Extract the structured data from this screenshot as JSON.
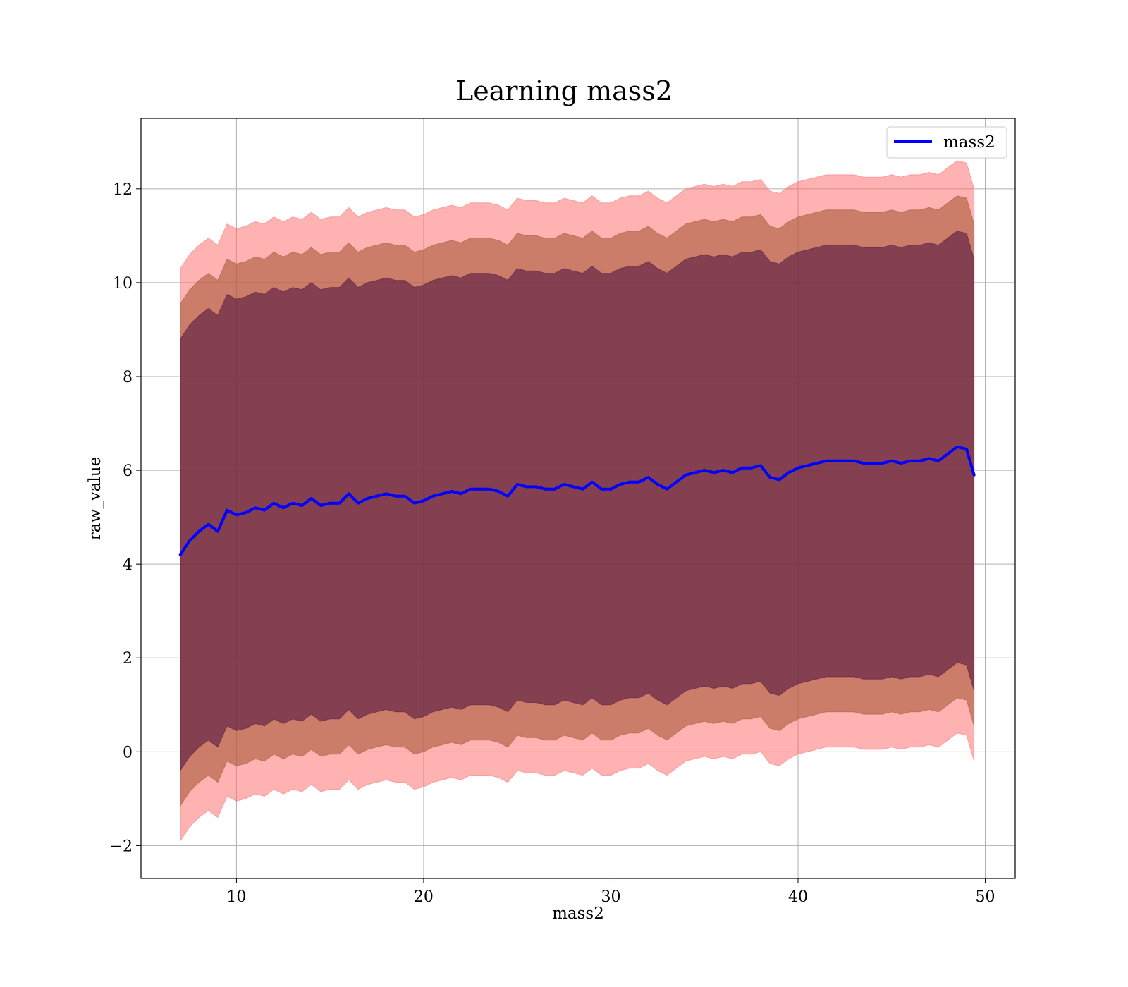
{
  "chart_data": {
    "type": "area",
    "title": "Learning mass2",
    "xlabel": "mass2",
    "ylabel": "raw_value",
    "xlim": [
      4.9,
      51.6
    ],
    "ylim": [
      -2.7,
      13.5
    ],
    "xticks": [
      10,
      20,
      30,
      40,
      50
    ],
    "yticks": [
      -2,
      0,
      2,
      4,
      6,
      8,
      10,
      12
    ],
    "xtick_labels": [
      "10",
      "20",
      "30",
      "40",
      "50"
    ],
    "ytick_labels": [
      "−2",
      "0",
      "2",
      "4",
      "6",
      "8",
      "10",
      "12"
    ],
    "grid": true,
    "legend": {
      "position": "top-right",
      "entries": [
        "mass2"
      ]
    },
    "colors": {
      "line": "#0000ff",
      "band_outer": "#ff6666",
      "band_mid": "#a0522d",
      "band_inner": "#4b0f3c"
    },
    "band_widths": {
      "inner": 4.6,
      "mid": 5.35,
      "outer": 6.1
    },
    "series": [
      {
        "name": "mass2",
        "x": [
          7.0,
          7.5,
          8.0,
          8.5,
          9.0,
          9.5,
          10.0,
          10.5,
          11.0,
          11.5,
          12.0,
          12.5,
          13.0,
          13.5,
          14.0,
          14.5,
          15.0,
          15.5,
          16.0,
          16.5,
          17.0,
          17.5,
          18.0,
          18.5,
          19.0,
          19.5,
          20.0,
          20.5,
          21.0,
          21.5,
          22.0,
          22.5,
          23.0,
          23.5,
          24.0,
          24.5,
          25.0,
          25.5,
          26.0,
          26.5,
          27.0,
          27.5,
          28.0,
          28.5,
          29.0,
          29.5,
          30.0,
          30.5,
          31.0,
          31.5,
          32.0,
          32.5,
          33.0,
          33.5,
          34.0,
          34.5,
          35.0,
          35.5,
          36.0,
          36.5,
          37.0,
          37.5,
          38.0,
          38.5,
          39.0,
          39.5,
          40.0,
          40.5,
          41.0,
          41.5,
          42.0,
          42.5,
          43.0,
          43.5,
          44.0,
          44.5,
          45.0,
          45.5,
          46.0,
          46.5,
          47.0,
          47.5,
          48.0,
          48.5,
          49.0,
          49.4
        ],
        "values": [
          4.2,
          4.5,
          4.7,
          4.85,
          4.7,
          5.15,
          5.05,
          5.1,
          5.2,
          5.15,
          5.3,
          5.2,
          5.3,
          5.25,
          5.4,
          5.25,
          5.3,
          5.3,
          5.5,
          5.3,
          5.4,
          5.45,
          5.5,
          5.45,
          5.45,
          5.3,
          5.35,
          5.45,
          5.5,
          5.55,
          5.5,
          5.6,
          5.6,
          5.6,
          5.55,
          5.45,
          5.7,
          5.65,
          5.65,
          5.6,
          5.6,
          5.7,
          5.65,
          5.6,
          5.75,
          5.6,
          5.6,
          5.7,
          5.75,
          5.75,
          5.85,
          5.7,
          5.6,
          5.75,
          5.9,
          5.95,
          6.0,
          5.95,
          6.0,
          5.95,
          6.05,
          6.05,
          6.1,
          5.85,
          5.8,
          5.95,
          6.05,
          6.1,
          6.15,
          6.2,
          6.2,
          6.2,
          6.2,
          6.15,
          6.15,
          6.15,
          6.2,
          6.15,
          6.2,
          6.2,
          6.25,
          6.2,
          6.35,
          6.5,
          6.45,
          5.9
        ]
      }
    ]
  }
}
